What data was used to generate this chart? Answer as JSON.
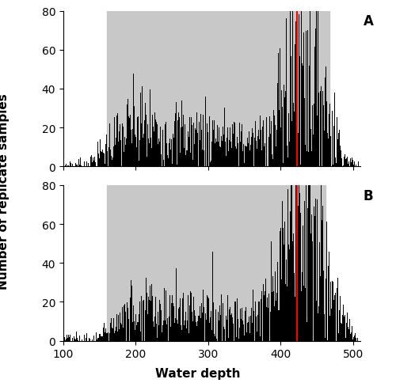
{
  "xlim": [
    100,
    510
  ],
  "ylim_A": [
    0,
    80
  ],
  "ylim_B": [
    0,
    80
  ],
  "yticks": [
    0,
    20,
    40,
    60,
    80
  ],
  "xticks": [
    100,
    200,
    300,
    400,
    500
  ],
  "xlabel": "Water depth",
  "ylabel": "Number of replicate samples",
  "label_A": "A",
  "label_B": "B",
  "red_line_x_A": 422,
  "red_line_x_B": 422,
  "ci_A": [
    160,
    467
  ],
  "ci_B": [
    160,
    462
  ],
  "background_color": "#c8c8c8",
  "bar_color": "#000000",
  "red_color": "#ff0000",
  "title_fontsize": 12,
  "axis_fontsize": 11,
  "tick_fontsize": 10
}
